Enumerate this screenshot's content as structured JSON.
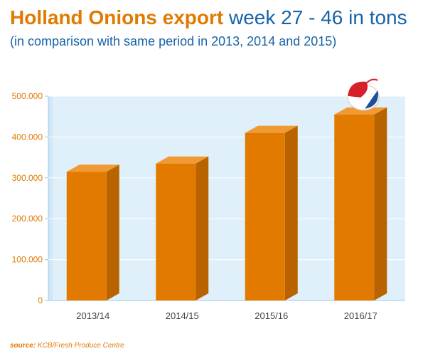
{
  "title": {
    "bold": "Holland Onions export",
    "rest": "week 27 - 46 in tons"
  },
  "subtitle": "(in comparison with same period in  2013, 2014 and 2015)",
  "source": {
    "label": "source:",
    "text": "KCB/Fresh Produce Centre"
  },
  "colors": {
    "bar_front": "#e37a00",
    "bar_side": "#b86200",
    "bar_top": "#f09a33",
    "plot_bg": "#dff0fa",
    "plot_wall": "#cfe7f6",
    "grid": "#ffffff",
    "axis": "#9cc8e6",
    "title_orange": "#e07a00",
    "title_blue": "#1763a8"
  },
  "logo": {
    "icon": "onion-flag-icon"
  },
  "chart_data": {
    "type": "bar",
    "title": "Holland Onions export week 27 - 46 in tons",
    "categories": [
      "2013/14",
      "2014/15",
      "2015/16",
      "2016/17"
    ],
    "values": [
      315000,
      335000,
      410000,
      455000
    ],
    "ylim": [
      0,
      500000
    ],
    "yticks": [
      "0",
      "100.000",
      "200.000",
      "300.000",
      "400.000",
      "500.000"
    ],
    "ytick_values": [
      0,
      100000,
      200000,
      300000,
      400000,
      500000
    ],
    "grid": true
  }
}
